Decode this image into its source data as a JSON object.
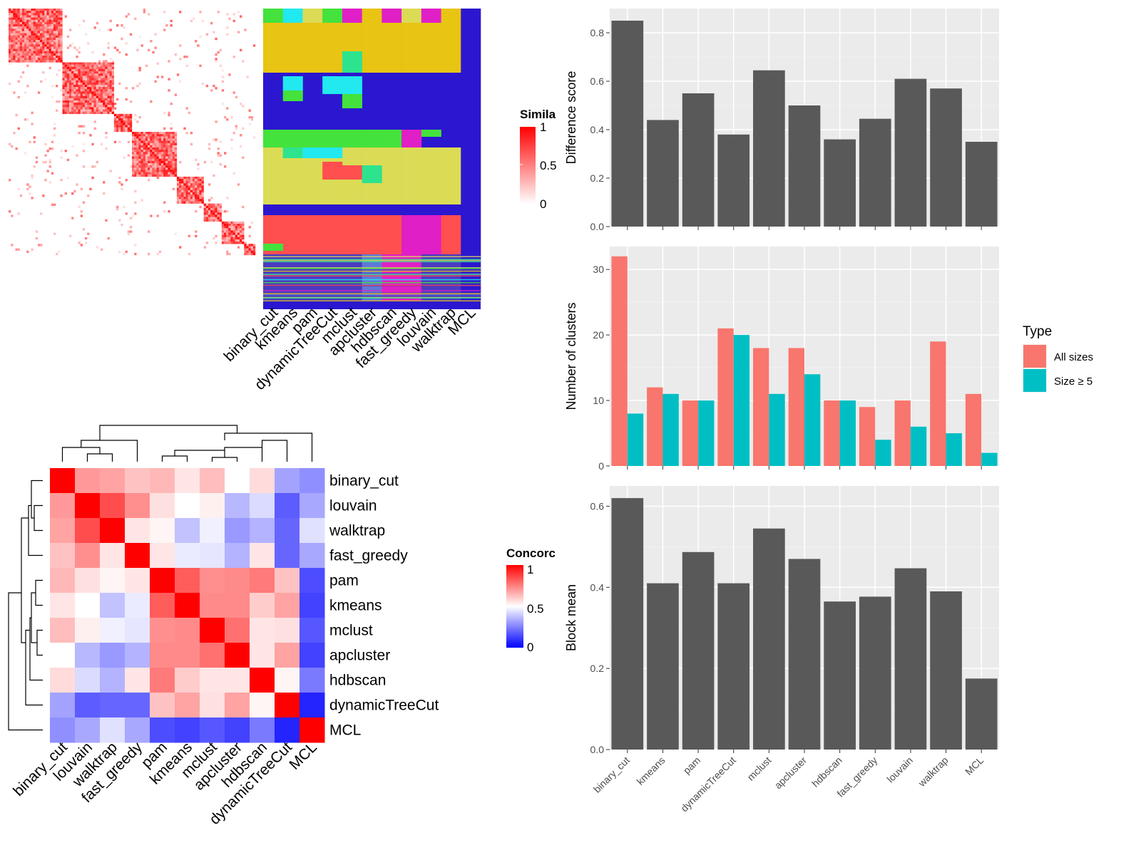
{
  "chart_data": [
    {
      "type": "heatmap",
      "panel": "similarity-heatmap",
      "legend": {
        "title": "Simila",
        "ticks": [
          "1",
          "0.5",
          "0"
        ],
        "colors": [
          "#ffffff",
          "#ff0000"
        ]
      }
    },
    {
      "type": "heatmap",
      "panel": "cluster-membership",
      "columns": [
        "binary_cut",
        "kmeans",
        "pam",
        "dynamicTreeCut",
        "mclust",
        "apcluster",
        "hdbscan",
        "fast_greedy",
        "louvain",
        "walktrap",
        "MCL"
      ],
      "colors": [
        "#2b17cf",
        "#e8c413",
        "#dbdb55",
        "#e01fc6",
        "#ff4f4f",
        "#22e8ef",
        "#44e23c",
        "#2ee38e",
        "#4b3ac1",
        "#5f78d6"
      ]
    },
    {
      "type": "heatmap",
      "panel": "concordance-heatmap",
      "row_labels": [
        "binary_cut",
        "louvain",
        "walktrap",
        "fast_greedy",
        "pam",
        "kmeans",
        "mclust",
        "apcluster",
        "hdbscan",
        "dynamicTreeCut",
        "MCL"
      ],
      "col_labels": [
        "binary_cut",
        "louvain",
        "walktrap",
        "fast_greedy",
        "pam",
        "kmeans",
        "mclust",
        "apcluster",
        "hdbscan",
        "dynamicTreeCut",
        "MCL"
      ],
      "values": [
        [
          1.0,
          0.7,
          0.68,
          0.62,
          0.64,
          0.55,
          0.63,
          0.5,
          0.57,
          0.32,
          0.28
        ],
        [
          0.7,
          1.0,
          0.85,
          0.72,
          0.56,
          0.5,
          0.53,
          0.36,
          0.43,
          0.18,
          0.33
        ],
        [
          0.68,
          0.85,
          1.0,
          0.55,
          0.52,
          0.38,
          0.47,
          0.3,
          0.35,
          0.2,
          0.44
        ],
        [
          0.62,
          0.72,
          0.55,
          1.0,
          0.55,
          0.46,
          0.45,
          0.35,
          0.55,
          0.2,
          0.33
        ],
        [
          0.64,
          0.56,
          0.52,
          0.55,
          1.0,
          0.82,
          0.72,
          0.73,
          0.76,
          0.62,
          0.15
        ],
        [
          0.55,
          0.5,
          0.38,
          0.46,
          0.82,
          1.0,
          0.73,
          0.73,
          0.6,
          0.68,
          0.13
        ],
        [
          0.63,
          0.53,
          0.47,
          0.45,
          0.72,
          0.73,
          1.0,
          0.78,
          0.55,
          0.56,
          0.17
        ],
        [
          0.5,
          0.36,
          0.3,
          0.35,
          0.73,
          0.73,
          0.78,
          1.0,
          0.55,
          0.68,
          0.13
        ],
        [
          0.57,
          0.43,
          0.35,
          0.55,
          0.76,
          0.6,
          0.55,
          0.55,
          1.0,
          0.52,
          0.24
        ],
        [
          0.32,
          0.18,
          0.2,
          0.2,
          0.62,
          0.68,
          0.56,
          0.68,
          0.52,
          1.0,
          0.07
        ],
        [
          0.28,
          0.33,
          0.44,
          0.33,
          0.15,
          0.13,
          0.17,
          0.13,
          0.24,
          0.07,
          1.0
        ]
      ],
      "legend": {
        "title": "Concorc",
        "ticks": [
          "1",
          "0.5",
          "0"
        ],
        "colors": [
          "#0000ff",
          "#ffffff",
          "#ff0000"
        ]
      }
    },
    {
      "type": "bar",
      "panel": "difference-score",
      "ylabel": "Difference score",
      "categories": [
        "binary_cut",
        "kmeans",
        "pam",
        "dynamicTreeCut",
        "mclust",
        "apcluster",
        "hdbscan",
        "fast_greedy",
        "louvain",
        "walktrap",
        "MCL"
      ],
      "values": [
        0.85,
        0.44,
        0.55,
        0.38,
        0.645,
        0.5,
        0.36,
        0.445,
        0.61,
        0.57,
        0.35
      ],
      "ylim": [
        0,
        0.9
      ],
      "yticks": [
        0.0,
        0.2,
        0.4,
        0.6,
        0.8
      ],
      "ytick_labels": [
        "0.0",
        "0.2",
        "0.4",
        "0.6",
        "0.8"
      ],
      "grid": true,
      "bar_color": "#595959"
    },
    {
      "type": "bar",
      "panel": "number-of-clusters",
      "ylabel": "Number of clusters",
      "categories": [
        "binary_cut",
        "kmeans",
        "pam",
        "dynamicTreeCut",
        "mclust",
        "apcluster",
        "hdbscan",
        "fast_greedy",
        "louvain",
        "walktrap",
        "MCL"
      ],
      "series": [
        {
          "name": "All sizes",
          "color": "#f8766d",
          "values": [
            32,
            12,
            10,
            21,
            18,
            18,
            10,
            9,
            10,
            19,
            11
          ]
        },
        {
          "name": "Size ≥ 5",
          "color": "#00bfc4",
          "values": [
            8,
            11,
            10,
            20,
            11,
            14,
            10,
            4,
            6,
            5,
            2
          ]
        }
      ],
      "legend_title": "Type",
      "legend_position": "right",
      "ylim": [
        0,
        33.5
      ],
      "yticks": [
        0,
        10,
        20,
        30
      ],
      "ytick_labels": [
        "0",
        "10",
        "20",
        "30"
      ],
      "grid": true
    },
    {
      "type": "bar",
      "panel": "block-mean",
      "ylabel": "Block mean",
      "categories": [
        "binary_cut",
        "kmeans",
        "pam",
        "dynamicTreeCut",
        "mclust",
        "apcluster",
        "hdbscan",
        "fast_greedy",
        "louvain",
        "walktrap",
        "MCL"
      ],
      "values": [
        0.62,
        0.41,
        0.487,
        0.41,
        0.545,
        0.47,
        0.365,
        0.377,
        0.447,
        0.39,
        0.175
      ],
      "ylim": [
        0,
        0.65
      ],
      "yticks": [
        0.0,
        0.2,
        0.4,
        0.6
      ],
      "ytick_labels": [
        "0.0",
        "0.2",
        "0.4",
        "0.6"
      ],
      "grid": true,
      "bar_color": "#595959"
    }
  ]
}
